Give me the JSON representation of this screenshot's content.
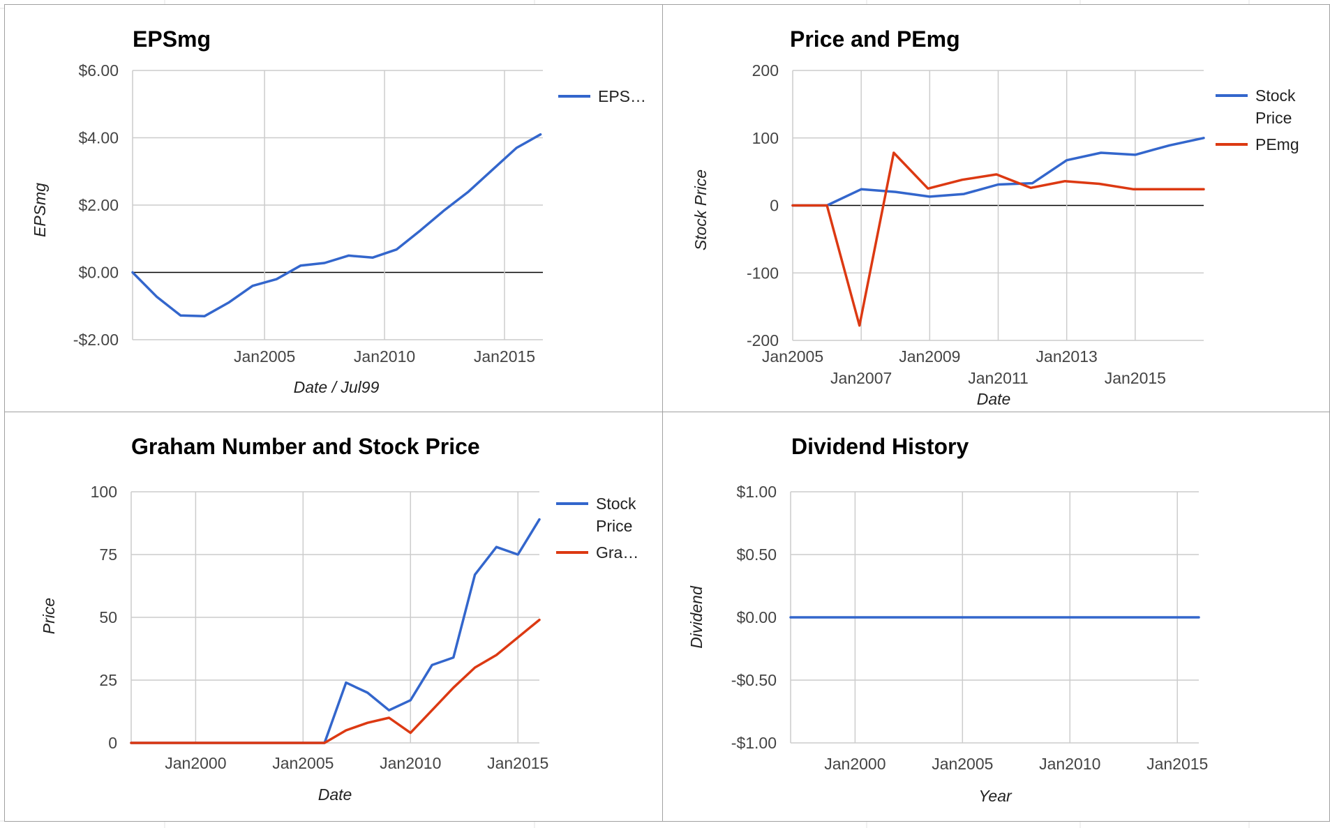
{
  "chart_data": [
    {
      "id": "eps",
      "type": "line",
      "title": "EPSmg",
      "xlabel": "Date / Jul99",
      "ylabel": "EPSmg",
      "xlim": [
        1999.5,
        2016.6
      ],
      "ylim": [
        -2.0,
        6.0
      ],
      "y_ticks": [
        {
          "v": 6,
          "label": "$6.00"
        },
        {
          "v": 4,
          "label": "$4.00"
        },
        {
          "v": 2,
          "label": "$2.00"
        },
        {
          "v": 0,
          "label": "$0.00"
        },
        {
          "v": -2,
          "label": "-$2.00"
        }
      ],
      "x_ticks": [
        {
          "v": 2005,
          "label": "Jan2005"
        },
        {
          "v": 2010,
          "label": "Jan2010"
        },
        {
          "v": 2015,
          "label": "Jan2015"
        }
      ],
      "legend": [
        {
          "label": "EPS…",
          "color": "#3366cc"
        }
      ],
      "series": [
        {
          "name": "EPS…",
          "color": "#3366cc",
          "x": [
            1999.5,
            2000.5,
            2001.5,
            2002.5,
            2003.5,
            2004.5,
            2005.5,
            2006.5,
            2007.5,
            2008.5,
            2009.5,
            2010.5,
            2011.5,
            2012.5,
            2013.5,
            2014.5,
            2015.5,
            2016.5
          ],
          "y": [
            0.0,
            -0.72,
            -1.28,
            -1.3,
            -0.9,
            -0.4,
            -0.2,
            0.2,
            0.28,
            0.5,
            0.44,
            0.68,
            1.25,
            1.85,
            2.4,
            3.05,
            3.7,
            4.1
          ]
        }
      ]
    },
    {
      "id": "pe",
      "type": "line",
      "title": "Price and PEmg",
      "xlabel": "Date",
      "ylabel": "Stock Price",
      "xlim": [
        2005.0,
        2017.0
      ],
      "ylim": [
        -200,
        200
      ],
      "y_ticks": [
        {
          "v": 200,
          "label": "200"
        },
        {
          "v": 100,
          "label": "100"
        },
        {
          "v": 0,
          "label": "0"
        },
        {
          "v": -100,
          "label": "-100"
        },
        {
          "v": -200,
          "label": "-200"
        }
      ],
      "x_ticks": [
        {
          "v": 2005,
          "label": "Jan2005",
          "row": 0
        },
        {
          "v": 2007,
          "label": "Jan2007",
          "row": 1
        },
        {
          "v": 2009,
          "label": "Jan2009",
          "row": 0
        },
        {
          "v": 2011,
          "label": "Jan2011",
          "row": 1
        },
        {
          "v": 2013,
          "label": "Jan2013",
          "row": 0
        },
        {
          "v": 2015,
          "label": "Jan2015",
          "row": 1
        }
      ],
      "legend": [
        {
          "label": [
            "Stock",
            "Price"
          ],
          "color": "#3366cc"
        },
        {
          "label": [
            "PEmg"
          ],
          "color": "#dc3912"
        }
      ],
      "series": [
        {
          "name": "Stock Price",
          "color": "#3366cc",
          "x": [
            2005.0,
            2006.0,
            2007.0,
            2008.0,
            2009.0,
            2010.0,
            2011.0,
            2012.0,
            2013.0,
            2014.0,
            2015.0,
            2016.0,
            2017.0
          ],
          "y": [
            0,
            0,
            24,
            20,
            13,
            17,
            31,
            33,
            67,
            78,
            75,
            89,
            100
          ]
        },
        {
          "name": "PEmg",
          "color": "#dc3912",
          "x": [
            2005.0,
            2006.0,
            2006.95,
            2007.95,
            2008.95,
            2009.95,
            2010.95,
            2011.95,
            2012.95,
            2013.95,
            2014.95,
            2015.95,
            2017.0
          ],
          "y": [
            0,
            0,
            -178,
            78,
            25,
            38,
            46,
            26,
            36,
            32,
            24,
            24,
            24
          ]
        }
      ]
    },
    {
      "id": "graham",
      "type": "line",
      "title": "Graham Number and Stock Price",
      "xlabel": "Date",
      "ylabel": "Price",
      "xlim": [
        1997.0,
        2016.0
      ],
      "ylim": [
        0,
        100
      ],
      "y_ticks": [
        {
          "v": 100,
          "label": "100"
        },
        {
          "v": 75,
          "label": "75"
        },
        {
          "v": 50,
          "label": "50"
        },
        {
          "v": 25,
          "label": "25"
        },
        {
          "v": 0,
          "label": "0"
        }
      ],
      "x_ticks": [
        {
          "v": 2000,
          "label": "Jan2000"
        },
        {
          "v": 2005,
          "label": "Jan2005"
        },
        {
          "v": 2010,
          "label": "Jan2010"
        },
        {
          "v": 2015,
          "label": "Jan2015"
        }
      ],
      "legend": [
        {
          "label": [
            "Stock",
            "Price"
          ],
          "color": "#3366cc"
        },
        {
          "label": [
            "Gra…"
          ],
          "color": "#dc3912"
        }
      ],
      "series": [
        {
          "name": "Stock Price",
          "color": "#3366cc",
          "x": [
            1997,
            2006,
            2007,
            2008,
            2009,
            2010,
            2011,
            2012,
            2013,
            2014,
            2015,
            2016
          ],
          "y": [
            0,
            0,
            24,
            20,
            13,
            17,
            31,
            34,
            67,
            78,
            75,
            89
          ]
        },
        {
          "name": "Gra…",
          "color": "#dc3912",
          "x": [
            1997,
            2006,
            2007,
            2008,
            2009,
            2010,
            2011,
            2012,
            2013,
            2014,
            2015,
            2016
          ],
          "y": [
            0,
            0,
            5,
            8,
            10,
            4,
            13,
            22,
            30,
            35,
            42,
            49
          ]
        }
      ]
    },
    {
      "id": "dividend",
      "type": "line",
      "title": "Dividend History",
      "xlabel": "Year",
      "ylabel": "Dividend",
      "xlim": [
        1997.0,
        2016.0
      ],
      "ylim": [
        -1.0,
        1.0
      ],
      "y_ticks": [
        {
          "v": 1,
          "label": "$1.00"
        },
        {
          "v": 0.5,
          "label": "$0.50"
        },
        {
          "v": 0,
          "label": "$0.00"
        },
        {
          "v": -0.5,
          "label": "-$0.50"
        },
        {
          "v": -1,
          "label": "-$1.00"
        }
      ],
      "x_ticks": [
        {
          "v": 2000,
          "label": "Jan2000"
        },
        {
          "v": 2005,
          "label": "Jan2005"
        },
        {
          "v": 2010,
          "label": "Jan2010"
        },
        {
          "v": 2015,
          "label": "Jan2015"
        }
      ],
      "legend": [],
      "series": [
        {
          "name": "",
          "color": "#3366cc",
          "x": [
            1997,
            2016
          ],
          "y": [
            0,
            0
          ]
        }
      ]
    }
  ]
}
